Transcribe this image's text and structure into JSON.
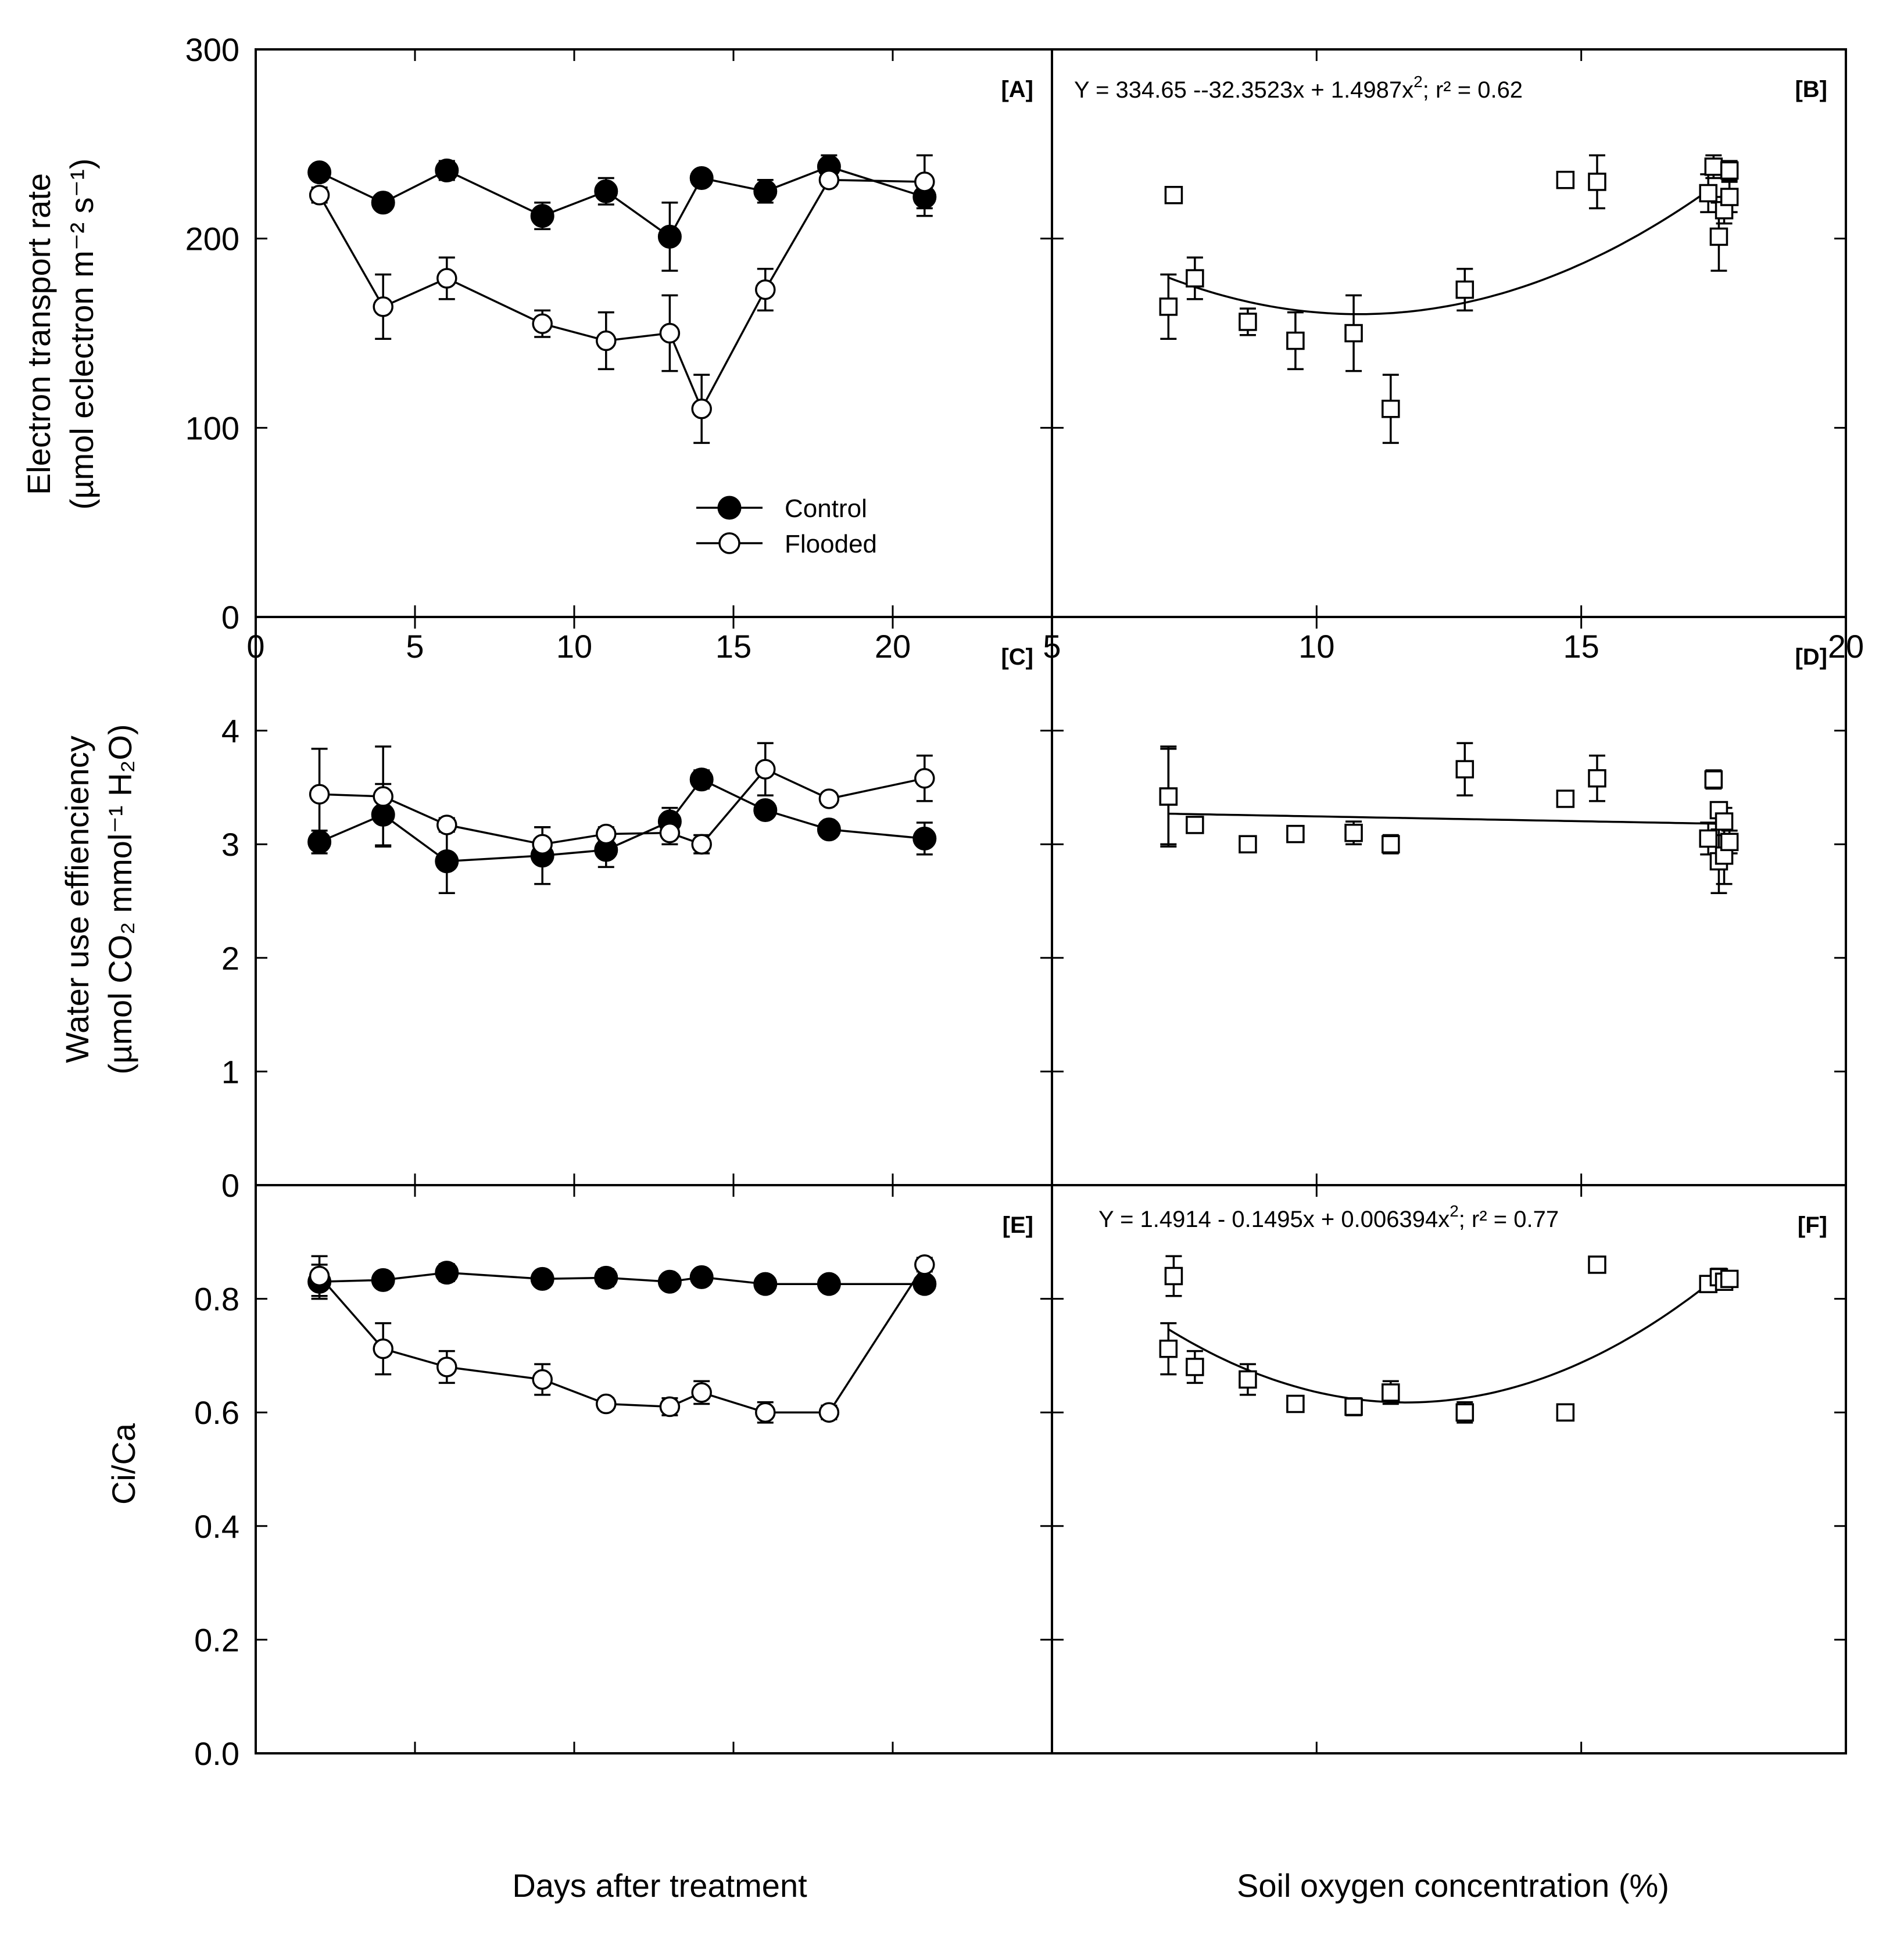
{
  "chart_data": [
    {
      "panel": "A",
      "type": "line",
      "label": "[A]",
      "ylabel_line1": "Electron transport rate",
      "ylabel_line2": "(µmol eclectron m⁻² s⁻¹)",
      "xlabel": "Days after treatment",
      "xlim": [
        0,
        25
      ],
      "ylim": [
        0,
        300
      ],
      "xticks": [
        "0",
        "5",
        "10",
        "15",
        "20"
      ],
      "yticks": [
        "0",
        "100",
        "200",
        "300"
      ],
      "series": [
        {
          "name": "Control",
          "marker": "filled-circle",
          "points": [
            {
              "x": 2,
              "y": 235,
              "err": 4
            },
            {
              "x": 4,
              "y": 219,
              "err": 3
            },
            {
              "x": 6,
              "y": 236,
              "err": 5
            },
            {
              "x": 9,
              "y": 212,
              "err": 7
            },
            {
              "x": 11,
              "y": 225,
              "err": 7
            },
            {
              "x": 13,
              "y": 201,
              "err": 18
            },
            {
              "x": 14,
              "y": 232,
              "err": 4
            },
            {
              "x": 16,
              "y": 225,
              "err": 6
            },
            {
              "x": 18,
              "y": 238,
              "err": 6
            },
            {
              "x": 21,
              "y": 222,
              "err": 10
            }
          ]
        },
        {
          "name": "Flooded",
          "marker": "open-circle",
          "points": [
            {
              "x": 2,
              "y": 223,
              "err": 4
            },
            {
              "x": 4,
              "y": 164,
              "err": 17
            },
            {
              "x": 6,
              "y": 179,
              "err": 11
            },
            {
              "x": 9,
              "y": 155,
              "err": 7
            },
            {
              "x": 11,
              "y": 146,
              "err": 15
            },
            {
              "x": 13,
              "y": 150,
              "err": 20
            },
            {
              "x": 14,
              "y": 110,
              "err": 18
            },
            {
              "x": 16,
              "y": 173,
              "err": 11
            },
            {
              "x": 18,
              "y": 231,
              "err": 3
            },
            {
              "x": 21,
              "y": 230,
              "err": 14
            }
          ]
        }
      ],
      "legend": {
        "placement": "lower-center",
        "entries": [
          "Control",
          "Flooded"
        ]
      }
    },
    {
      "panel": "B",
      "type": "scatter",
      "label": "[B]",
      "equation_prefix": "Y = 334.65 --32.3523x + 1.4987x",
      "equation_sup": "2",
      "equation_suffix": "; r² = 0.62",
      "xlabel": "Soil oxygen concentration (%)",
      "xlim": [
        5,
        20
      ],
      "ylim": [
        0,
        300
      ],
      "xticks": [
        "5",
        "10",
        "15",
        "20"
      ],
      "fit": {
        "a": 334.65,
        "b": -32.3523,
        "c": 1.4987,
        "xrange": [
          7.2,
          17.5
        ]
      },
      "points": [
        {
          "x": 7.2,
          "y": 164,
          "err": 17
        },
        {
          "x": 7.3,
          "y": 223,
          "err": 4
        },
        {
          "x": 7.7,
          "y": 179,
          "err": 11
        },
        {
          "x": 8.7,
          "y": 156,
          "err": 7
        },
        {
          "x": 9.6,
          "y": 146,
          "err": 15
        },
        {
          "x": 10.7,
          "y": 150,
          "err": 20
        },
        {
          "x": 11.4,
          "y": 110,
          "err": 18
        },
        {
          "x": 12.8,
          "y": 173,
          "err": 11
        },
        {
          "x": 14.7,
          "y": 231,
          "err": 3
        },
        {
          "x": 15.3,
          "y": 230,
          "err": 14
        },
        {
          "x": 17.4,
          "y": 224,
          "err": 10
        },
        {
          "x": 17.5,
          "y": 238,
          "err": 6
        },
        {
          "x": 17.6,
          "y": 201,
          "err": 18
        },
        {
          "x": 17.7,
          "y": 215,
          "err": 7
        },
        {
          "x": 17.8,
          "y": 236,
          "err": 5
        },
        {
          "x": 17.8,
          "y": 222,
          "err": 8
        }
      ]
    },
    {
      "panel": "C",
      "type": "line",
      "label": "[C]",
      "ylabel_line1": "Water use effienciency",
      "ylabel_line2": "(µmol CO₂ mmol⁻¹ H₂O)",
      "xlim": [
        0,
        25
      ],
      "ylim": [
        0,
        5
      ],
      "yticks": [
        "0",
        "1",
        "2",
        "3",
        "4"
      ],
      "series": [
        {
          "name": "Control",
          "marker": "filled-circle",
          "points": [
            {
              "x": 2,
              "y": 3.02,
              "err": 0.1
            },
            {
              "x": 4,
              "y": 3.26,
              "err": 0.27
            },
            {
              "x": 6,
              "y": 2.85,
              "err": 0.28
            },
            {
              "x": 9,
              "y": 2.9,
              "err": 0.25
            },
            {
              "x": 11,
              "y": 2.95,
              "err": 0.15
            },
            {
              "x": 13,
              "y": 3.2,
              "err": 0.12
            },
            {
              "x": 14,
              "y": 3.57,
              "err": 0.08
            },
            {
              "x": 16,
              "y": 3.3,
              "err": 0.06
            },
            {
              "x": 18,
              "y": 3.13,
              "err": 0.05
            },
            {
              "x": 21,
              "y": 3.05,
              "err": 0.14
            }
          ]
        },
        {
          "name": "Flooded",
          "marker": "open-circle",
          "points": [
            {
              "x": 2,
              "y": 3.44,
              "err": 0.4
            },
            {
              "x": 4,
              "y": 3.42,
              "err": 0.44
            },
            {
              "x": 6,
              "y": 3.17,
              "err": 0.06
            },
            {
              "x": 9,
              "y": 3.0,
              "err": 0.15
            },
            {
              "x": 11,
              "y": 3.09,
              "err": 0.06
            },
            {
              "x": 13,
              "y": 3.1,
              "err": 0.1
            },
            {
              "x": 14,
              "y": 3.0,
              "err": 0.08
            },
            {
              "x": 16,
              "y": 3.66,
              "err": 0.23
            },
            {
              "x": 18,
              "y": 3.4,
              "err": 0.05
            },
            {
              "x": 21,
              "y": 3.58,
              "err": 0.2
            }
          ]
        }
      ]
    },
    {
      "panel": "D",
      "type": "scatter",
      "label": "[D]",
      "xlim": [
        5,
        20
      ],
      "ylim": [
        0,
        5
      ],
      "fit": {
        "a": 3.33,
        "b": -0.0085,
        "c": 0,
        "xrange": [
          7.2,
          17.7
        ]
      },
      "points": [
        {
          "x": 7.2,
          "y": 3.42,
          "err": 0.44
        },
        {
          "x": 7.2,
          "y": 3.42,
          "err": 0.42
        },
        {
          "x": 7.7,
          "y": 3.17,
          "err": 0.06
        },
        {
          "x": 8.7,
          "y": 3.0,
          "err": 0.06
        },
        {
          "x": 9.6,
          "y": 3.09,
          "err": 0.06
        },
        {
          "x": 10.7,
          "y": 3.1,
          "err": 0.1
        },
        {
          "x": 11.4,
          "y": 3.0,
          "err": 0.08
        },
        {
          "x": 12.8,
          "y": 3.66,
          "err": 0.23
        },
        {
          "x": 14.7,
          "y": 3.4,
          "err": 0.05
        },
        {
          "x": 15.3,
          "y": 3.58,
          "err": 0.2
        },
        {
          "x": 17.4,
          "y": 3.05,
          "err": 0.14
        },
        {
          "x": 17.5,
          "y": 3.57,
          "err": 0.08
        },
        {
          "x": 17.6,
          "y": 3.3,
          "err": 0.06
        },
        {
          "x": 17.6,
          "y": 2.85,
          "err": 0.28
        },
        {
          "x": 17.7,
          "y": 2.9,
          "err": 0.25
        },
        {
          "x": 17.8,
          "y": 3.02,
          "err": 0.1
        },
        {
          "x": 17.7,
          "y": 3.2,
          "err": 0.12
        }
      ]
    },
    {
      "panel": "E",
      "type": "line",
      "label": "[E]",
      "ylabel_line1": "Ci/Ca",
      "xlim": [
        0,
        25
      ],
      "ylim": [
        0,
        1.0
      ],
      "yticks": [
        "0.0",
        "0.2",
        "0.4",
        "0.6",
        "0.8"
      ],
      "series": [
        {
          "name": "Control",
          "marker": "filled-circle",
          "points": [
            {
              "x": 2,
              "y": 0.83,
              "err": 0.03
            },
            {
              "x": 4,
              "y": 0.833,
              "err": 0.01
            },
            {
              "x": 6,
              "y": 0.846,
              "err": 0.015
            },
            {
              "x": 9,
              "y": 0.835,
              "err": 0.01
            },
            {
              "x": 11,
              "y": 0.837,
              "err": 0.015
            },
            {
              "x": 13,
              "y": 0.83,
              "err": 0.01
            },
            {
              "x": 14,
              "y": 0.838,
              "err": 0.01
            },
            {
              "x": 16,
              "y": 0.826,
              "err": 0.01
            },
            {
              "x": 18,
              "y": 0.826,
              "err": 0.01
            },
            {
              "x": 21,
              "y": 0.826,
              "err": 0.01
            }
          ]
        },
        {
          "name": "Flooded",
          "marker": "open-circle",
          "points": [
            {
              "x": 2,
              "y": 0.84,
              "err": 0.035
            },
            {
              "x": 4,
              "y": 0.712,
              "err": 0.045
            },
            {
              "x": 6,
              "y": 0.68,
              "err": 0.028
            },
            {
              "x": 9,
              "y": 0.658,
              "err": 0.027
            },
            {
              "x": 11,
              "y": 0.615,
              "err": 0.01
            },
            {
              "x": 13,
              "y": 0.61,
              "err": 0.015
            },
            {
              "x": 14,
              "y": 0.635,
              "err": 0.02
            },
            {
              "x": 16,
              "y": 0.6,
              "err": 0.018
            },
            {
              "x": 18,
              "y": 0.6,
              "err": 0.012
            },
            {
              "x": 21,
              "y": 0.86,
              "err": 0.012
            }
          ]
        }
      ]
    },
    {
      "panel": "F",
      "type": "scatter",
      "label": "[F]",
      "equation_prefix": "Y = 1.4914 - 0.1495x + 0.006394x",
      "equation_sup": "2",
      "equation_suffix": "; r² = 0.77",
      "xlim": [
        5,
        20
      ],
      "ylim": [
        0,
        1.0
      ],
      "fit": {
        "a": 1.4914,
        "b": -0.1495,
        "c": 0.006394,
        "xrange": [
          7.2,
          17.7
        ]
      },
      "points": [
        {
          "x": 7.2,
          "y": 0.712,
          "err": 0.045
        },
        {
          "x": 7.3,
          "y": 0.84,
          "err": 0.035
        },
        {
          "x": 7.7,
          "y": 0.68,
          "err": 0.028
        },
        {
          "x": 8.7,
          "y": 0.658,
          "err": 0.027
        },
        {
          "x": 9.6,
          "y": 0.615,
          "err": 0.01
        },
        {
          "x": 10.7,
          "y": 0.61,
          "err": 0.015
        },
        {
          "x": 11.4,
          "y": 0.635,
          "err": 0.02
        },
        {
          "x": 12.8,
          "y": 0.6,
          "err": 0.018
        },
        {
          "x": 14.7,
          "y": 0.6,
          "err": 0.012
        },
        {
          "x": 15.3,
          "y": 0.86,
          "err": 0.012
        },
        {
          "x": 17.4,
          "y": 0.826,
          "err": 0.01
        },
        {
          "x": 17.6,
          "y": 0.838,
          "err": 0.015
        },
        {
          "x": 17.7,
          "y": 0.83,
          "err": 0.01
        },
        {
          "x": 17.8,
          "y": 0.835,
          "err": 0.01
        }
      ]
    }
  ]
}
